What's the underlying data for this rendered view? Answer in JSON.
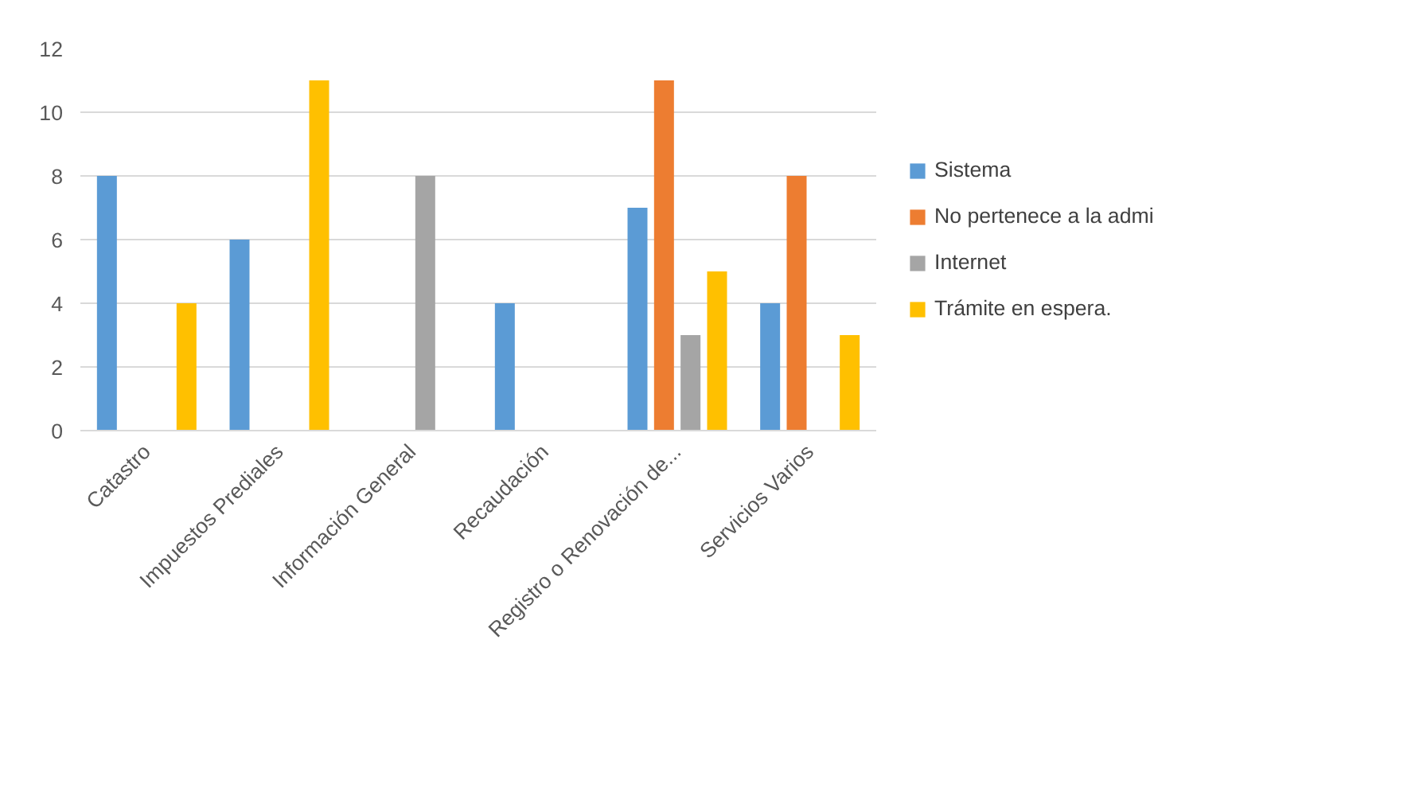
{
  "chart_data": {
    "type": "bar",
    "categories": [
      "Catastro",
      "Impuestos Prediales",
      "Información General",
      "Recaudación",
      "Registro o Renovación de...",
      "Servicios Varios"
    ],
    "series": [
      {
        "name": "Sistema",
        "color": "#5b9bd5",
        "values": [
          8,
          6,
          0,
          4,
          7,
          4
        ]
      },
      {
        "name": "No pertenece a la admi",
        "color": "#ed7d31",
        "values": [
          0,
          0,
          0,
          0,
          11,
          8
        ]
      },
      {
        "name": "Internet",
        "color": "#a5a5a5",
        "values": [
          0,
          0,
          8,
          0,
          3,
          0
        ]
      },
      {
        "name": "Trámite en espera.",
        "color": "#ffc000",
        "values": [
          4,
          11,
          0,
          0,
          5,
          3
        ]
      }
    ],
    "ylim": [
      0,
      12
    ],
    "yticks": [
      0,
      2,
      4,
      6,
      8,
      10,
      12
    ],
    "grid": "y",
    "legend": "right"
  }
}
